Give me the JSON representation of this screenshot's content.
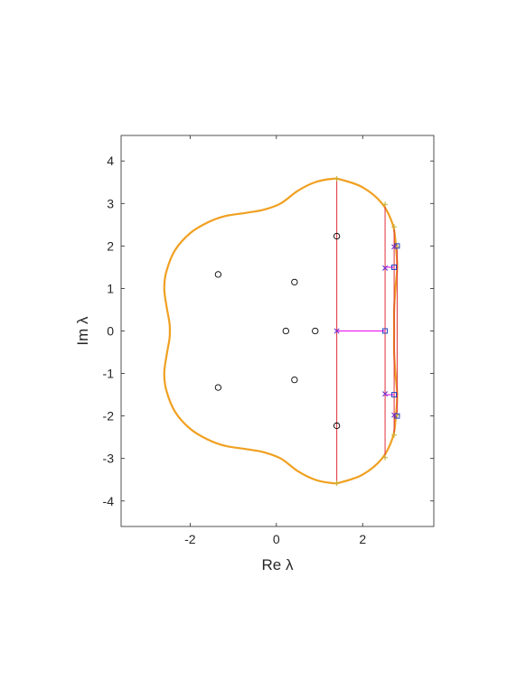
{
  "chart_data": {
    "type": "scatter",
    "title": "",
    "xlabel": "Re λ",
    "ylabel": "Im λ",
    "xlim": [
      -3.6,
      3.65
    ],
    "ylim": [
      -4.6,
      4.6
    ],
    "xticks": [
      -2,
      0,
      2
    ],
    "yticks": [
      -4,
      -3,
      -2,
      -1,
      0,
      1,
      2,
      3,
      4
    ],
    "grid": false,
    "box": true,
    "colors": {
      "boundary": "#f0a020",
      "circles": "#000000",
      "red_lines": "#e0303a",
      "magenta": "#ee22ee",
      "cross": "#7030d0",
      "square": "#2040c0",
      "plus": "#c8b030"
    },
    "boundary_curve": {
      "description_shape": "four-lobed closed curve",
      "points": [
        [
          2.73,
          0.0
        ],
        [
          2.73,
          0.5
        ],
        [
          2.76,
          1.0
        ],
        [
          2.8,
          1.5
        ],
        [
          2.77,
          2.0
        ],
        [
          2.7,
          2.5
        ],
        [
          2.45,
          3.0
        ],
        [
          2.0,
          3.38
        ],
        [
          1.5,
          3.56
        ],
        [
          1.3,
          3.58
        ],
        [
          0.9,
          3.5
        ],
        [
          0.5,
          3.3
        ],
        [
          0.1,
          3.0
        ],
        [
          -0.3,
          2.85
        ],
        [
          -0.7,
          2.78
        ],
        [
          -1.2,
          2.7
        ],
        [
          -1.6,
          2.55
        ],
        [
          -2.0,
          2.3
        ],
        [
          -2.35,
          1.9
        ],
        [
          -2.55,
          1.4
        ],
        [
          -2.6,
          1.0
        ],
        [
          -2.55,
          0.6
        ],
        [
          -2.48,
          0.2
        ],
        [
          -2.47,
          0.0
        ]
      ]
    },
    "circles": [
      [
        1.4,
        2.23
      ],
      [
        -1.35,
        1.33
      ],
      [
        0.42,
        1.15
      ],
      [
        0.22,
        0.0
      ],
      [
        0.9,
        0.0
      ],
      [
        0.42,
        -1.15
      ],
      [
        -1.35,
        -1.33
      ],
      [
        1.4,
        -2.23
      ]
    ],
    "red_lines": [
      {
        "x": 1.4,
        "y": [
          -3.58,
          3.58
        ]
      },
      {
        "x": 2.52,
        "y": [
          -2.98,
          2.98
        ]
      },
      {
        "x": 2.73,
        "y": [
          -2.45,
          2.45
        ]
      },
      {
        "x": 2.8,
        "y": [
          -1.98,
          1.98
        ]
      }
    ],
    "magenta_segments": [
      {
        "x": [
          1.4,
          2.52
        ],
        "y": [
          0.0,
          0.0
        ]
      },
      {
        "x": [
          2.52,
          2.73
        ],
        "y": [
          1.5,
          1.5
        ]
      },
      {
        "x": [
          2.52,
          2.73
        ],
        "y": [
          -1.5,
          -1.5
        ]
      },
      {
        "x": [
          2.73,
          2.8
        ],
        "y": [
          1.98,
          1.98
        ]
      },
      {
        "x": [
          2.73,
          2.8
        ],
        "y": [
          -1.98,
          -1.98
        ]
      }
    ],
    "cross_markers": [
      [
        1.4,
        0.0
      ],
      [
        2.52,
        1.48
      ],
      [
        2.52,
        -1.48
      ],
      [
        2.73,
        1.98
      ],
      [
        2.73,
        -1.98
      ]
    ],
    "square_markers": [
      [
        2.52,
        0.0
      ],
      [
        2.8,
        2.0
      ],
      [
        2.8,
        -2.0
      ],
      [
        2.73,
        1.5
      ],
      [
        2.73,
        -1.5
      ]
    ],
    "plus_markers": [
      [
        1.4,
        3.58
      ],
      [
        1.4,
        -3.58
      ],
      [
        2.52,
        2.98
      ],
      [
        2.52,
        -2.98
      ],
      [
        2.73,
        2.45
      ],
      [
        2.73,
        -2.45
      ],
      [
        2.8,
        1.98
      ],
      [
        2.8,
        -1.98
      ]
    ]
  }
}
